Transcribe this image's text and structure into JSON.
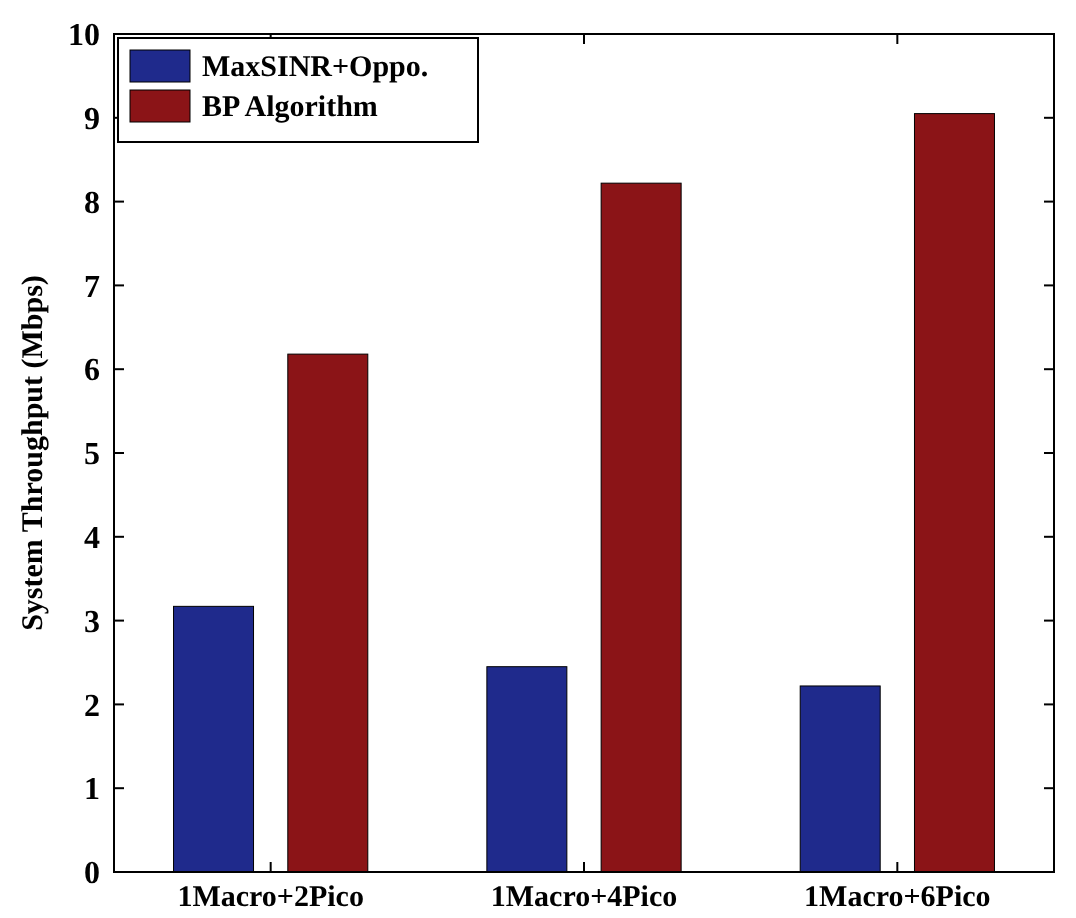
{
  "chart_data": {
    "type": "bar",
    "ylabel": "System Throughput (Mbps)",
    "categories": [
      "1Macro+2Pico",
      "1Macro+4Pico",
      "1Macro+6Pico"
    ],
    "series": [
      {
        "name": "MaxSINR+Oppo.",
        "color": "#1f2a8c",
        "values": [
          3.17,
          2.45,
          2.22
        ]
      },
      {
        "name": "BP Algorithm",
        "color": "#8b1417",
        "values": [
          6.18,
          8.22,
          9.05
        ]
      }
    ],
    "ylim": [
      0,
      10
    ],
    "yticks": [
      0,
      1,
      2,
      3,
      4,
      5,
      6,
      7,
      8,
      9,
      10
    ],
    "grid": false,
    "legend": "top left"
  }
}
